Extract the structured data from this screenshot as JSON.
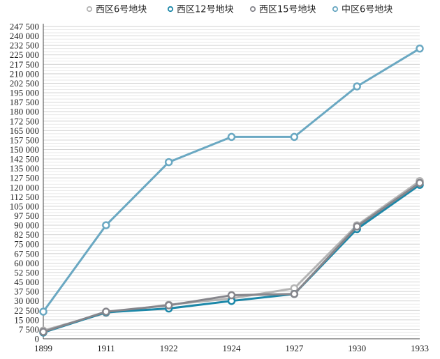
{
  "chart_data": {
    "type": "line",
    "title": "",
    "xlabel": "",
    "ylabel": "",
    "x": [
      "1899",
      "1911",
      "1922",
      "1924",
      "1927",
      "1930",
      "1933"
    ],
    "ylim": [
      0,
      247500
    ],
    "y_tick_step": 7500,
    "y_tick_labels": [
      "0",
      "7 500",
      "15 000",
      "22 500",
      "30 000",
      "37 500",
      "45 000",
      "52 500",
      "60 000",
      "67 500",
      "75 000",
      "82 500",
      "90 000",
      "97 500",
      "105 000",
      "112 500",
      "120 000",
      "127 500",
      "135 000",
      "142 500",
      "150 000",
      "157 500",
      "165 000",
      "172 500",
      "180 000",
      "187 500",
      "195 000",
      "202 500",
      "210 000",
      "217 500",
      "225 000",
      "232 500",
      "240 000",
      "247 500"
    ],
    "grid": true,
    "legend_position": "top",
    "series": [
      {
        "name": "西区6号地块",
        "color": "#b4b4b4",
        "values": [
          6500,
          20500,
          27000,
          32000,
          40000,
          90000,
          125000
        ]
      },
      {
        "name": "西区12号地块",
        "color": "#1b87a8",
        "values": [
          5000,
          21000,
          24000,
          30000,
          35500,
          87000,
          122000
        ]
      },
      {
        "name": "西区15号地块",
        "color": "#86868c",
        "values": [
          5500,
          21500,
          26500,
          34500,
          35500,
          89000,
          123500
        ]
      },
      {
        "name": "中区6号地块",
        "color": "#6aa8c2",
        "values": [
          21500,
          90000,
          140000,
          160000,
          160000,
          200000,
          230000
        ]
      }
    ]
  }
}
